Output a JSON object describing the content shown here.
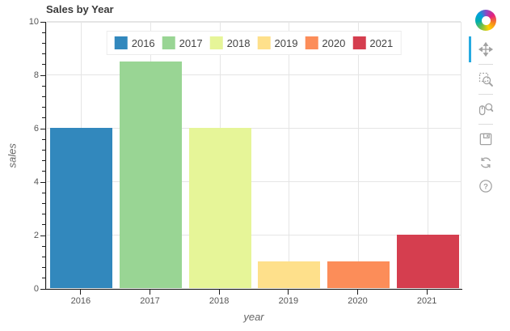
{
  "figure": {
    "title": "Sales by Year"
  },
  "chart_data": {
    "type": "bar",
    "title": "Sales by Year",
    "categories": [
      "2016",
      "2017",
      "2018",
      "2019",
      "2020",
      "2021"
    ],
    "values": [
      6,
      8.5,
      6,
      1,
      1,
      2
    ],
    "colors": [
      "#3288bd",
      "#99d594",
      "#e6f598",
      "#fee08b",
      "#fc8d59",
      "#d53e4f"
    ],
    "xlabel": "year",
    "ylabel": "sales",
    "ylim": [
      0,
      10
    ],
    "y_major_ticks": [
      0,
      2,
      4,
      6,
      8,
      10
    ],
    "y_minor_step": 0.4,
    "bar_width_fraction": 0.9,
    "grid": true,
    "legend": {
      "position": "top-center",
      "entries": [
        "2016",
        "2017",
        "2018",
        "2019",
        "2020",
        "2021"
      ]
    },
    "style": {
      "grid_color": "#e5e5e5",
      "axis_color": "#1a1a1a",
      "tick_label_color": "#555555",
      "axis_label_color": "#666666",
      "title_color": "#3a3a3a"
    }
  },
  "toolbar": {
    "logo": "bokeh-logo",
    "active_tool": "pan",
    "active_color": "#26aae1",
    "icon_color": "#a1a1a1",
    "help_glyph": "?",
    "tools": [
      {
        "name": "pan",
        "icon": "pan-icon",
        "active": true
      },
      {
        "name": "box-zoom",
        "icon": "box-zoom-icon",
        "active": false
      },
      {
        "name": "wheel-zoom",
        "icon": "wheel-zoom-icon",
        "active": false
      },
      {
        "name": "save",
        "icon": "save-icon",
        "active": false
      },
      {
        "name": "reset",
        "icon": "reset-icon",
        "active": false
      },
      {
        "name": "help",
        "icon": "help-icon",
        "active": false
      }
    ]
  }
}
